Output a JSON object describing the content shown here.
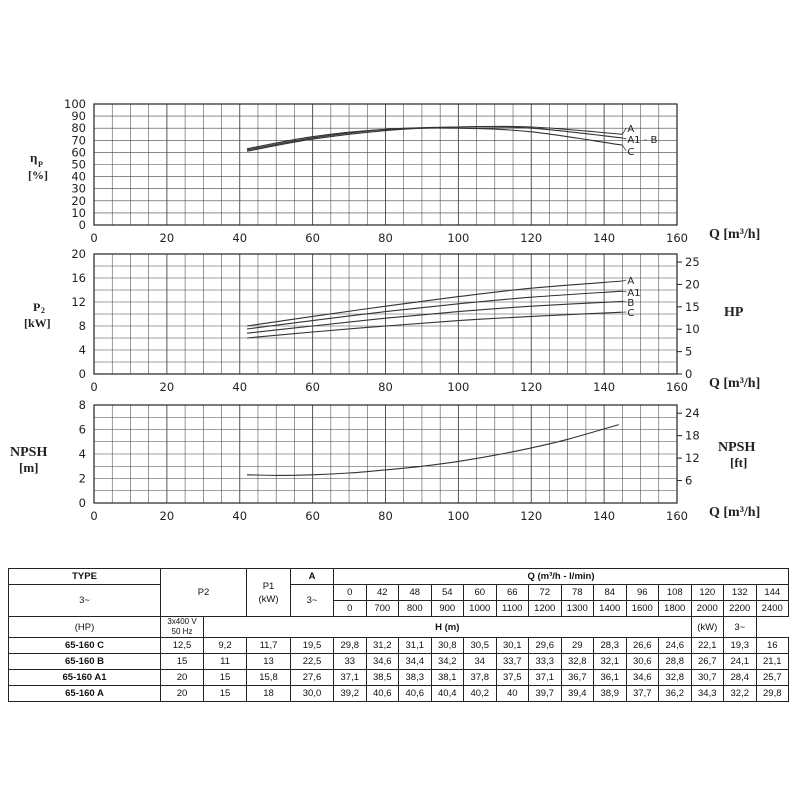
{
  "chart_data": [
    {
      "type": "line",
      "ylabel_main": "η",
      "ylabel_sub": "P",
      "ylabel_unit": "[%]",
      "xlabel": "Q [m³/h]",
      "xlim": [
        0,
        160
      ],
      "ylim": [
        0,
        100
      ],
      "x_ticks": [
        "0",
        "20",
        "40",
        "60",
        "80",
        "100",
        "120",
        "140",
        "160"
      ],
      "y_ticks": [
        "0",
        "10",
        "20",
        "30",
        "40",
        "50",
        "60",
        "70",
        "80",
        "90",
        "100"
      ],
      "series": [
        {
          "name": "A",
          "x": [
            42,
            60,
            80,
            100,
            120,
            145
          ],
          "y": [
            61,
            71,
            78,
            81,
            81,
            75
          ]
        },
        {
          "name": "A1 - B",
          "x": [
            42,
            60,
            80,
            100,
            120,
            145
          ],
          "y": [
            62,
            72,
            79,
            81,
            80,
            72
          ]
        },
        {
          "name": "C",
          "x": [
            42,
            60,
            80,
            100,
            120,
            145
          ],
          "y": [
            63,
            73,
            79,
            80,
            77,
            66
          ]
        }
      ],
      "grid": true
    },
    {
      "type": "line",
      "ylabel_main": "P",
      "ylabel_sub": "2",
      "ylabel_unit": "[kW]",
      "ylabel_right": "HP",
      "xlabel": "Q [m³/h]",
      "xlim": [
        0,
        160
      ],
      "ylim": [
        0,
        20
      ],
      "ylim_right": [
        0,
        26.8
      ],
      "x_ticks": [
        "0",
        "20",
        "40",
        "60",
        "80",
        "100",
        "120",
        "140",
        "160"
      ],
      "y_ticks": [
        "0",
        "4",
        "8",
        "12",
        "16",
        "20"
      ],
      "y_ticks_right": [
        "0",
        "5",
        "10",
        "15",
        "20",
        "25"
      ],
      "series": [
        {
          "name": "A",
          "x": [
            42,
            60,
            80,
            100,
            120,
            145
          ],
          "y": [
            8.0,
            9.6,
            11.3,
            12.9,
            14.3,
            15.5
          ]
        },
        {
          "name": "A1",
          "x": [
            42,
            60,
            80,
            100,
            120,
            145
          ],
          "y": [
            7.5,
            8.9,
            10.4,
            11.7,
            12.8,
            13.8
          ]
        },
        {
          "name": "B",
          "x": [
            42,
            60,
            80,
            100,
            120,
            145
          ],
          "y": [
            6.8,
            8.0,
            9.3,
            10.4,
            11.3,
            12.1
          ]
        },
        {
          "name": "C",
          "x": [
            42,
            60,
            80,
            100,
            120,
            145
          ],
          "y": [
            6.0,
            7.0,
            8.0,
            8.9,
            9.6,
            10.3
          ]
        }
      ],
      "grid": true
    },
    {
      "type": "line",
      "ylabel": "NPSH",
      "ylabel_unit": "[m]",
      "ylabel_right": "NPSH",
      "ylabel_right_unit": "[ft]",
      "xlabel": "Q [m³/h]",
      "xlim": [
        0,
        160
      ],
      "ylim": [
        0,
        8
      ],
      "ylim_right": [
        0,
        26.2
      ],
      "x_ticks": [
        "0",
        "20",
        "40",
        "60",
        "80",
        "100",
        "120",
        "140",
        "160"
      ],
      "y_ticks": [
        "0",
        "2",
        "4",
        "6",
        "8"
      ],
      "y_ticks_right": [
        "6",
        "12",
        "18",
        "24"
      ],
      "y_ticks_right_values": [
        6,
        12,
        18,
        24
      ],
      "series": [
        {
          "name": "",
          "x": [
            42,
            50,
            60,
            70,
            80,
            90,
            100,
            110,
            120,
            130,
            144
          ],
          "y": [
            2.3,
            2.25,
            2.3,
            2.45,
            2.7,
            3.0,
            3.4,
            3.9,
            4.5,
            5.2,
            6.4
          ]
        }
      ],
      "grid": true
    },
    {
      "type": "table",
      "header": {
        "type": "TYPE",
        "phase": "3~",
        "p2": "P2",
        "p2_hp": "(HP)",
        "p2_kw": "(kW)",
        "p1": "P1",
        "p1_unit": "(kW)",
        "p1_phase": "3~",
        "a": "A",
        "a_phase": "3~",
        "a_voltage": "3x400 V",
        "a_freq": "50 Hz",
        "q_title": "Q (m³/h - l/min)",
        "h_title": "H (m)",
        "q_m3h": [
          "0",
          "42",
          "48",
          "54",
          "60",
          "66",
          "72",
          "78",
          "84",
          "96",
          "108",
          "120",
          "132",
          "144"
        ],
        "q_lmin": [
          "0",
          "700",
          "800",
          "900",
          "1000",
          "1100",
          "1200",
          "1300",
          "1400",
          "1600",
          "1800",
          "2000",
          "2200",
          "2400"
        ]
      },
      "rows": [
        {
          "type": "65-160 C",
          "hp": "12,5",
          "kw": "9,2",
          "p1": "11,7",
          "a": "19,5",
          "h": [
            "29,8",
            "31,2",
            "31,1",
            "30,8",
            "30,5",
            "30,1",
            "29,6",
            "29",
            "28,3",
            "26,6",
            "24,6",
            "22,1",
            "19,3",
            "16"
          ]
        },
        {
          "type": "65-160 B",
          "hp": "15",
          "kw": "11",
          "p1": "13",
          "a": "22,5",
          "h": [
            "33",
            "34,6",
            "34,4",
            "34,2",
            "34",
            "33,7",
            "33,3",
            "32,8",
            "32,1",
            "30,6",
            "28,8",
            "26,7",
            "24,1",
            "21,1"
          ]
        },
        {
          "type": "65-160 A1",
          "hp": "20",
          "kw": "15",
          "p1": "15,8",
          "a": "27,6",
          "h": [
            "37,1",
            "38,5",
            "38,3",
            "38,1",
            "37,8",
            "37,5",
            "37,1",
            "36,7",
            "36,1",
            "34,6",
            "32,8",
            "30,7",
            "28,4",
            "25,7"
          ]
        },
        {
          "type": "65-160 A",
          "hp": "20",
          "kw": "15",
          "p1": "18",
          "a": "30,0",
          "h": [
            "39,2",
            "40,6",
            "40,6",
            "40,4",
            "40,2",
            "40",
            "39,7",
            "39,4",
            "38,9",
            "37,7",
            "36,2",
            "34,3",
            "32,2",
            "29,8"
          ]
        }
      ]
    }
  ]
}
